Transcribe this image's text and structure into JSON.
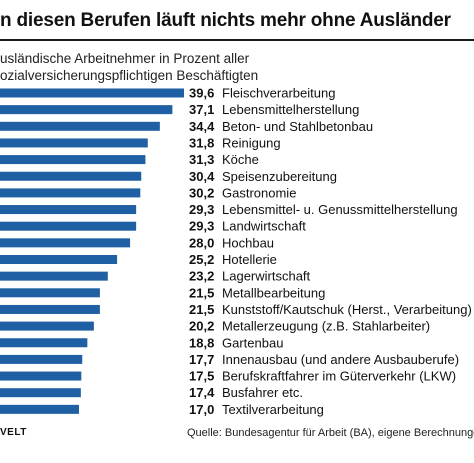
{
  "title": "n diesen Berufen läuft nichts mehr ohne Ausländer",
  "subtitle_line1": "usländische Arbeitnehmer in Prozent aller",
  "subtitle_line2": "ozialversicherungspflichtigen Beschäftigten",
  "footer": {
    "logo": "VELT",
    "source": "Quelle: Bundesagentur für Arbeit (BA), eigene Berechnungen"
  },
  "colors": {
    "bar": "#1f5fa3"
  },
  "chart_data": {
    "type": "bar",
    "orientation": "horizontal",
    "categories": [
      "Fleischverarbeitung",
      "Lebensmittelherstellung",
      "Beton- und Stahlbetonbau",
      "Reinigung",
      "Köche",
      "Speisenzubereitung",
      "Gastronomie",
      "Lebensmittel- u. Genussmittelherstellung",
      "Landwirtschaft",
      "Hochbau",
      "Hotellerie",
      "Lagerwirtschaft",
      "Metallbearbeitung",
      "Kunststoff/Kautschuk (Herst., Verarbeitung)",
      "Metallerzeugung (z.B. Stahlarbeiter)",
      "Gartenbau",
      "Innenausbau (und andere Ausbauberufe)",
      "Berufskraftfahrer im Güterverkehr (LKW)",
      "Busfahrer etc.",
      "Textilverarbeitung"
    ],
    "values": [
      39.6,
      37.1,
      34.4,
      31.8,
      31.3,
      30.4,
      30.2,
      29.3,
      29.3,
      28.0,
      25.2,
      23.2,
      21.5,
      21.5,
      20.2,
      18.8,
      17.7,
      17.5,
      17.4,
      17.0
    ],
    "value_labels": [
      "39,6",
      "37,1",
      "34,4",
      "31,8",
      "31,3",
      "30,4",
      "30,2",
      "29,3",
      "29,3",
      "28,0",
      "25,2",
      "23,2",
      "21,5",
      "21,5",
      "20,2",
      "18,8",
      "17,7",
      "17,5",
      "17,4",
      "17,0"
    ],
    "title": "n diesen Berufen läuft nichts mehr ohne Ausländer",
    "xlabel": "",
    "ylabel": "",
    "xlim": [
      0,
      39.6
    ],
    "grid": false,
    "legend": false
  }
}
